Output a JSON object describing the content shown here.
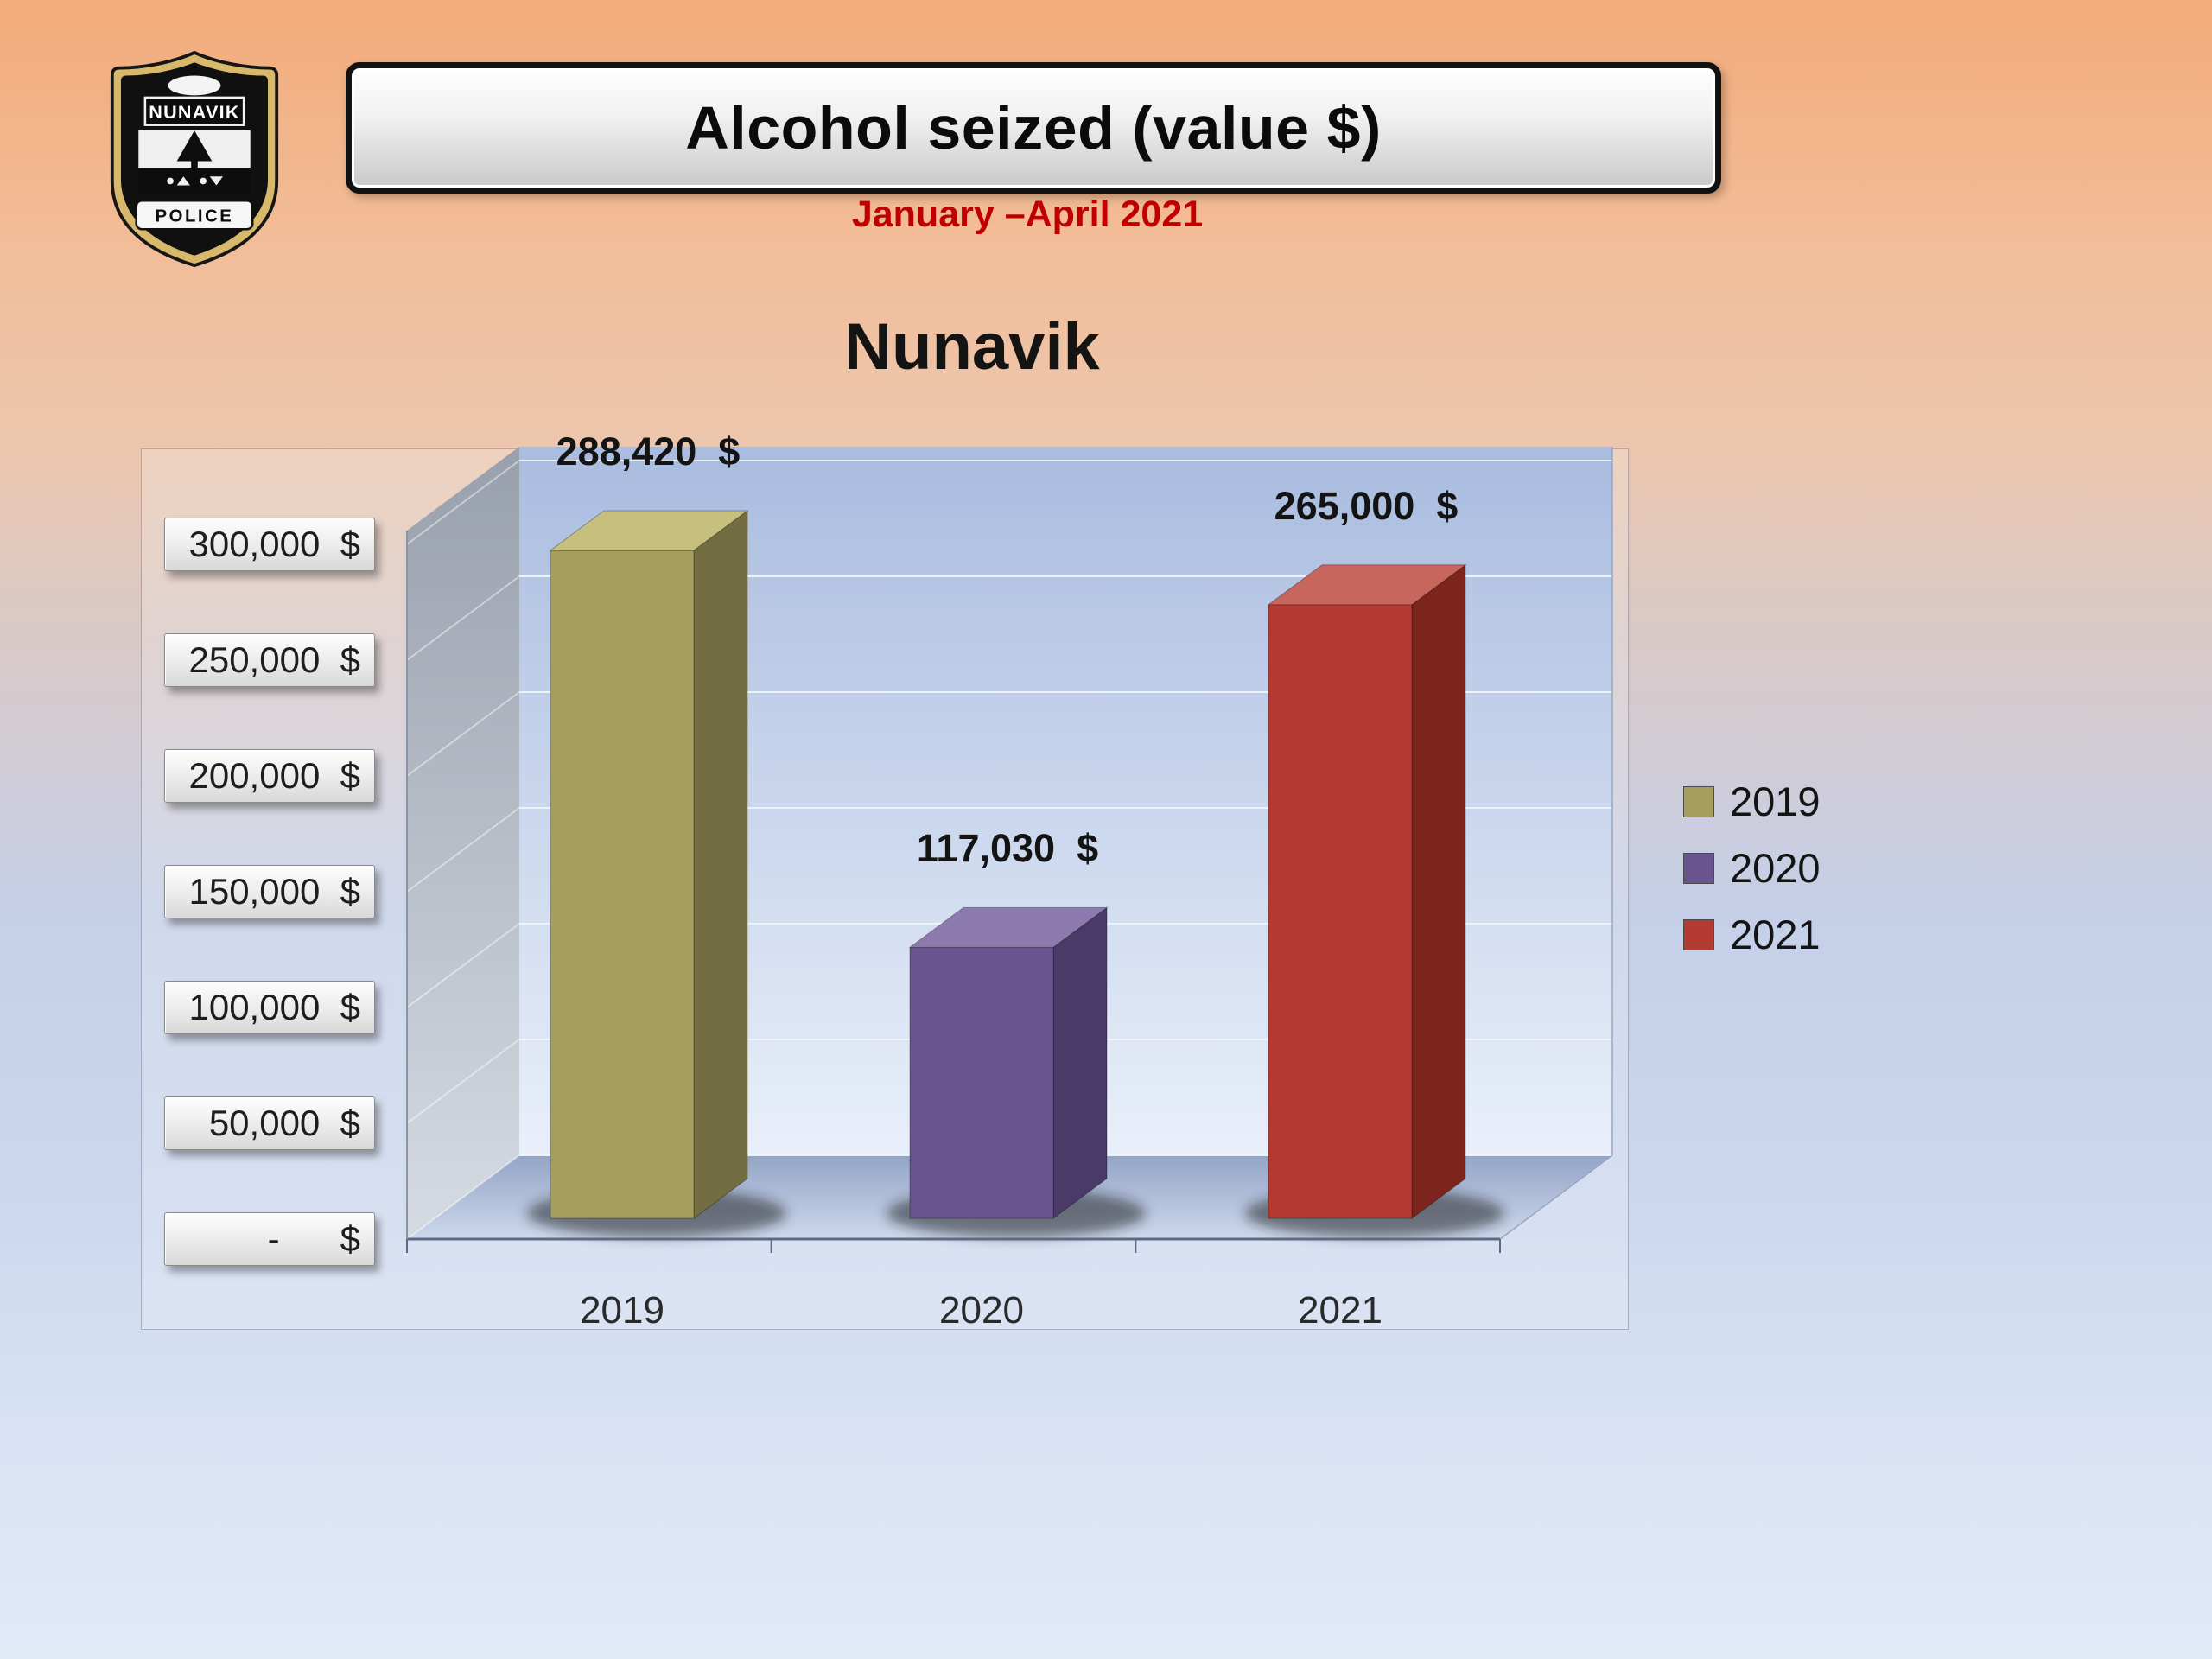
{
  "header": {
    "title": "Alcohol seized (value $)",
    "subtitle": "January –April 2021"
  },
  "badge": {
    "top_text": "NUNAVIK",
    "bottom_text": "POLICE"
  },
  "legend": [
    {
      "label": "2019",
      "color": "#a69e5c"
    },
    {
      "label": "2020",
      "color": "#6a5490"
    },
    {
      "label": "2021",
      "color": "#b23a31"
    }
  ],
  "chart_data": {
    "type": "bar",
    "projection": "3d",
    "title": "Nunavik",
    "categories": [
      "2019",
      "2020",
      "2021"
    ],
    "values": [
      288420,
      117030,
      265000
    ],
    "data_labels": [
      "288,420  $",
      "117,030  $",
      "265,000  $"
    ],
    "bar_colors": [
      {
        "front": "#a69e5c",
        "top": "#c6bf7e",
        "side": "#736d42"
      },
      {
        "front": "#6a5490",
        "top": "#8d7bb0",
        "side": "#4a3a68"
      },
      {
        "front": "#b23a31",
        "top": "#c7665c",
        "side": "#7e241e"
      }
    ],
    "xlabel": "",
    "ylabel": "",
    "ylim": [
      0,
      300000
    ],
    "ytick_step": 50000,
    "yticks": [
      {
        "value": 300000,
        "label": "300,000  $"
      },
      {
        "value": 250000,
        "label": "250,000  $"
      },
      {
        "value": 200000,
        "label": "200,000  $"
      },
      {
        "value": 150000,
        "label": "150,000  $"
      },
      {
        "value": 100000,
        "label": "100,000  $"
      },
      {
        "value": 50000,
        "label": "50,000  $"
      },
      {
        "value": 0,
        "label": "-      $"
      }
    ],
    "grid": true,
    "legend_position": "right"
  }
}
